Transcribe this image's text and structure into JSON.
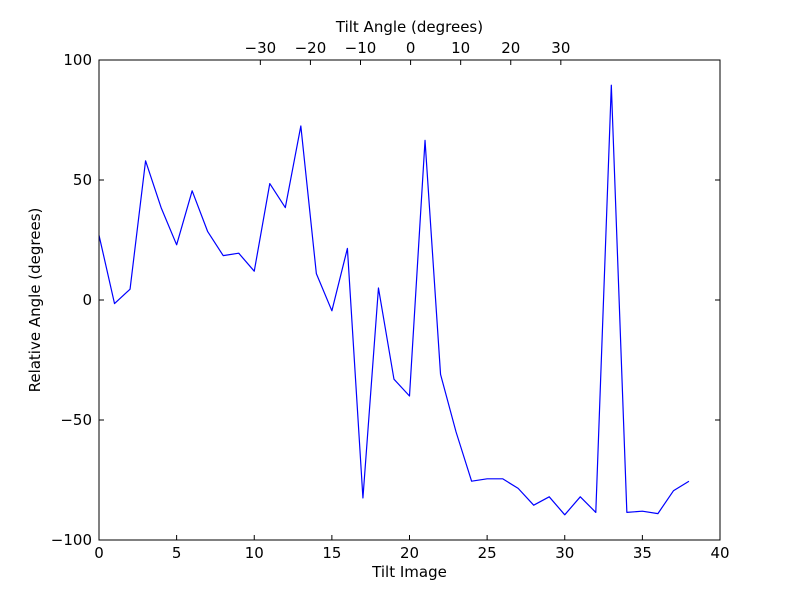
{
  "chart_data": {
    "type": "line",
    "xlabel": "Tilt Image",
    "ylabel": "Relative Angle (degrees)",
    "top_xlabel": "Tilt Angle (degrees)",
    "xlim": [
      0,
      40
    ],
    "ylim": [
      -100,
      100
    ],
    "x_ticks": [
      0,
      5,
      10,
      15,
      20,
      25,
      30,
      35,
      40
    ],
    "y_ticks": [
      -100,
      -50,
      0,
      50,
      100
    ],
    "top_ticks": [
      {
        "value": -30,
        "label": "−30"
      },
      {
        "value": -20,
        "label": "−20"
      },
      {
        "value": -10,
        "label": "−10"
      },
      {
        "value": 0,
        "label": "0"
      },
      {
        "value": 10,
        "label": "10"
      },
      {
        "value": 20,
        "label": "20"
      },
      {
        "value": 30,
        "label": "30"
      }
    ],
    "grid": false,
    "line_color": "#0000ff",
    "series": [
      {
        "x": [
          0,
          1,
          2,
          3,
          4,
          5,
          6,
          7,
          8,
          9,
          10,
          11,
          12,
          13,
          14,
          15,
          16,
          17,
          18,
          19,
          20,
          21,
          22,
          23,
          24,
          25,
          26,
          27,
          28,
          29,
          30,
          31,
          32,
          33,
          34,
          35,
          36,
          37,
          38
        ],
        "y": [
          27,
          -1.5,
          4.5,
          58,
          38.5,
          23,
          45.5,
          28.5,
          18.5,
          19.5,
          12,
          48.5,
          38.5,
          72.5,
          11,
          -4.5,
          21.5,
          -82.5,
          5,
          -33,
          -40,
          66.5,
          -31,
          -55,
          -75.5,
          -74.5,
          -74.5,
          -78.5,
          -85.5,
          -82,
          -89.5,
          -82,
          -88.5,
          89.5,
          -88.5,
          -88,
          -89,
          -79.5,
          -75.5
        ]
      }
    ]
  }
}
